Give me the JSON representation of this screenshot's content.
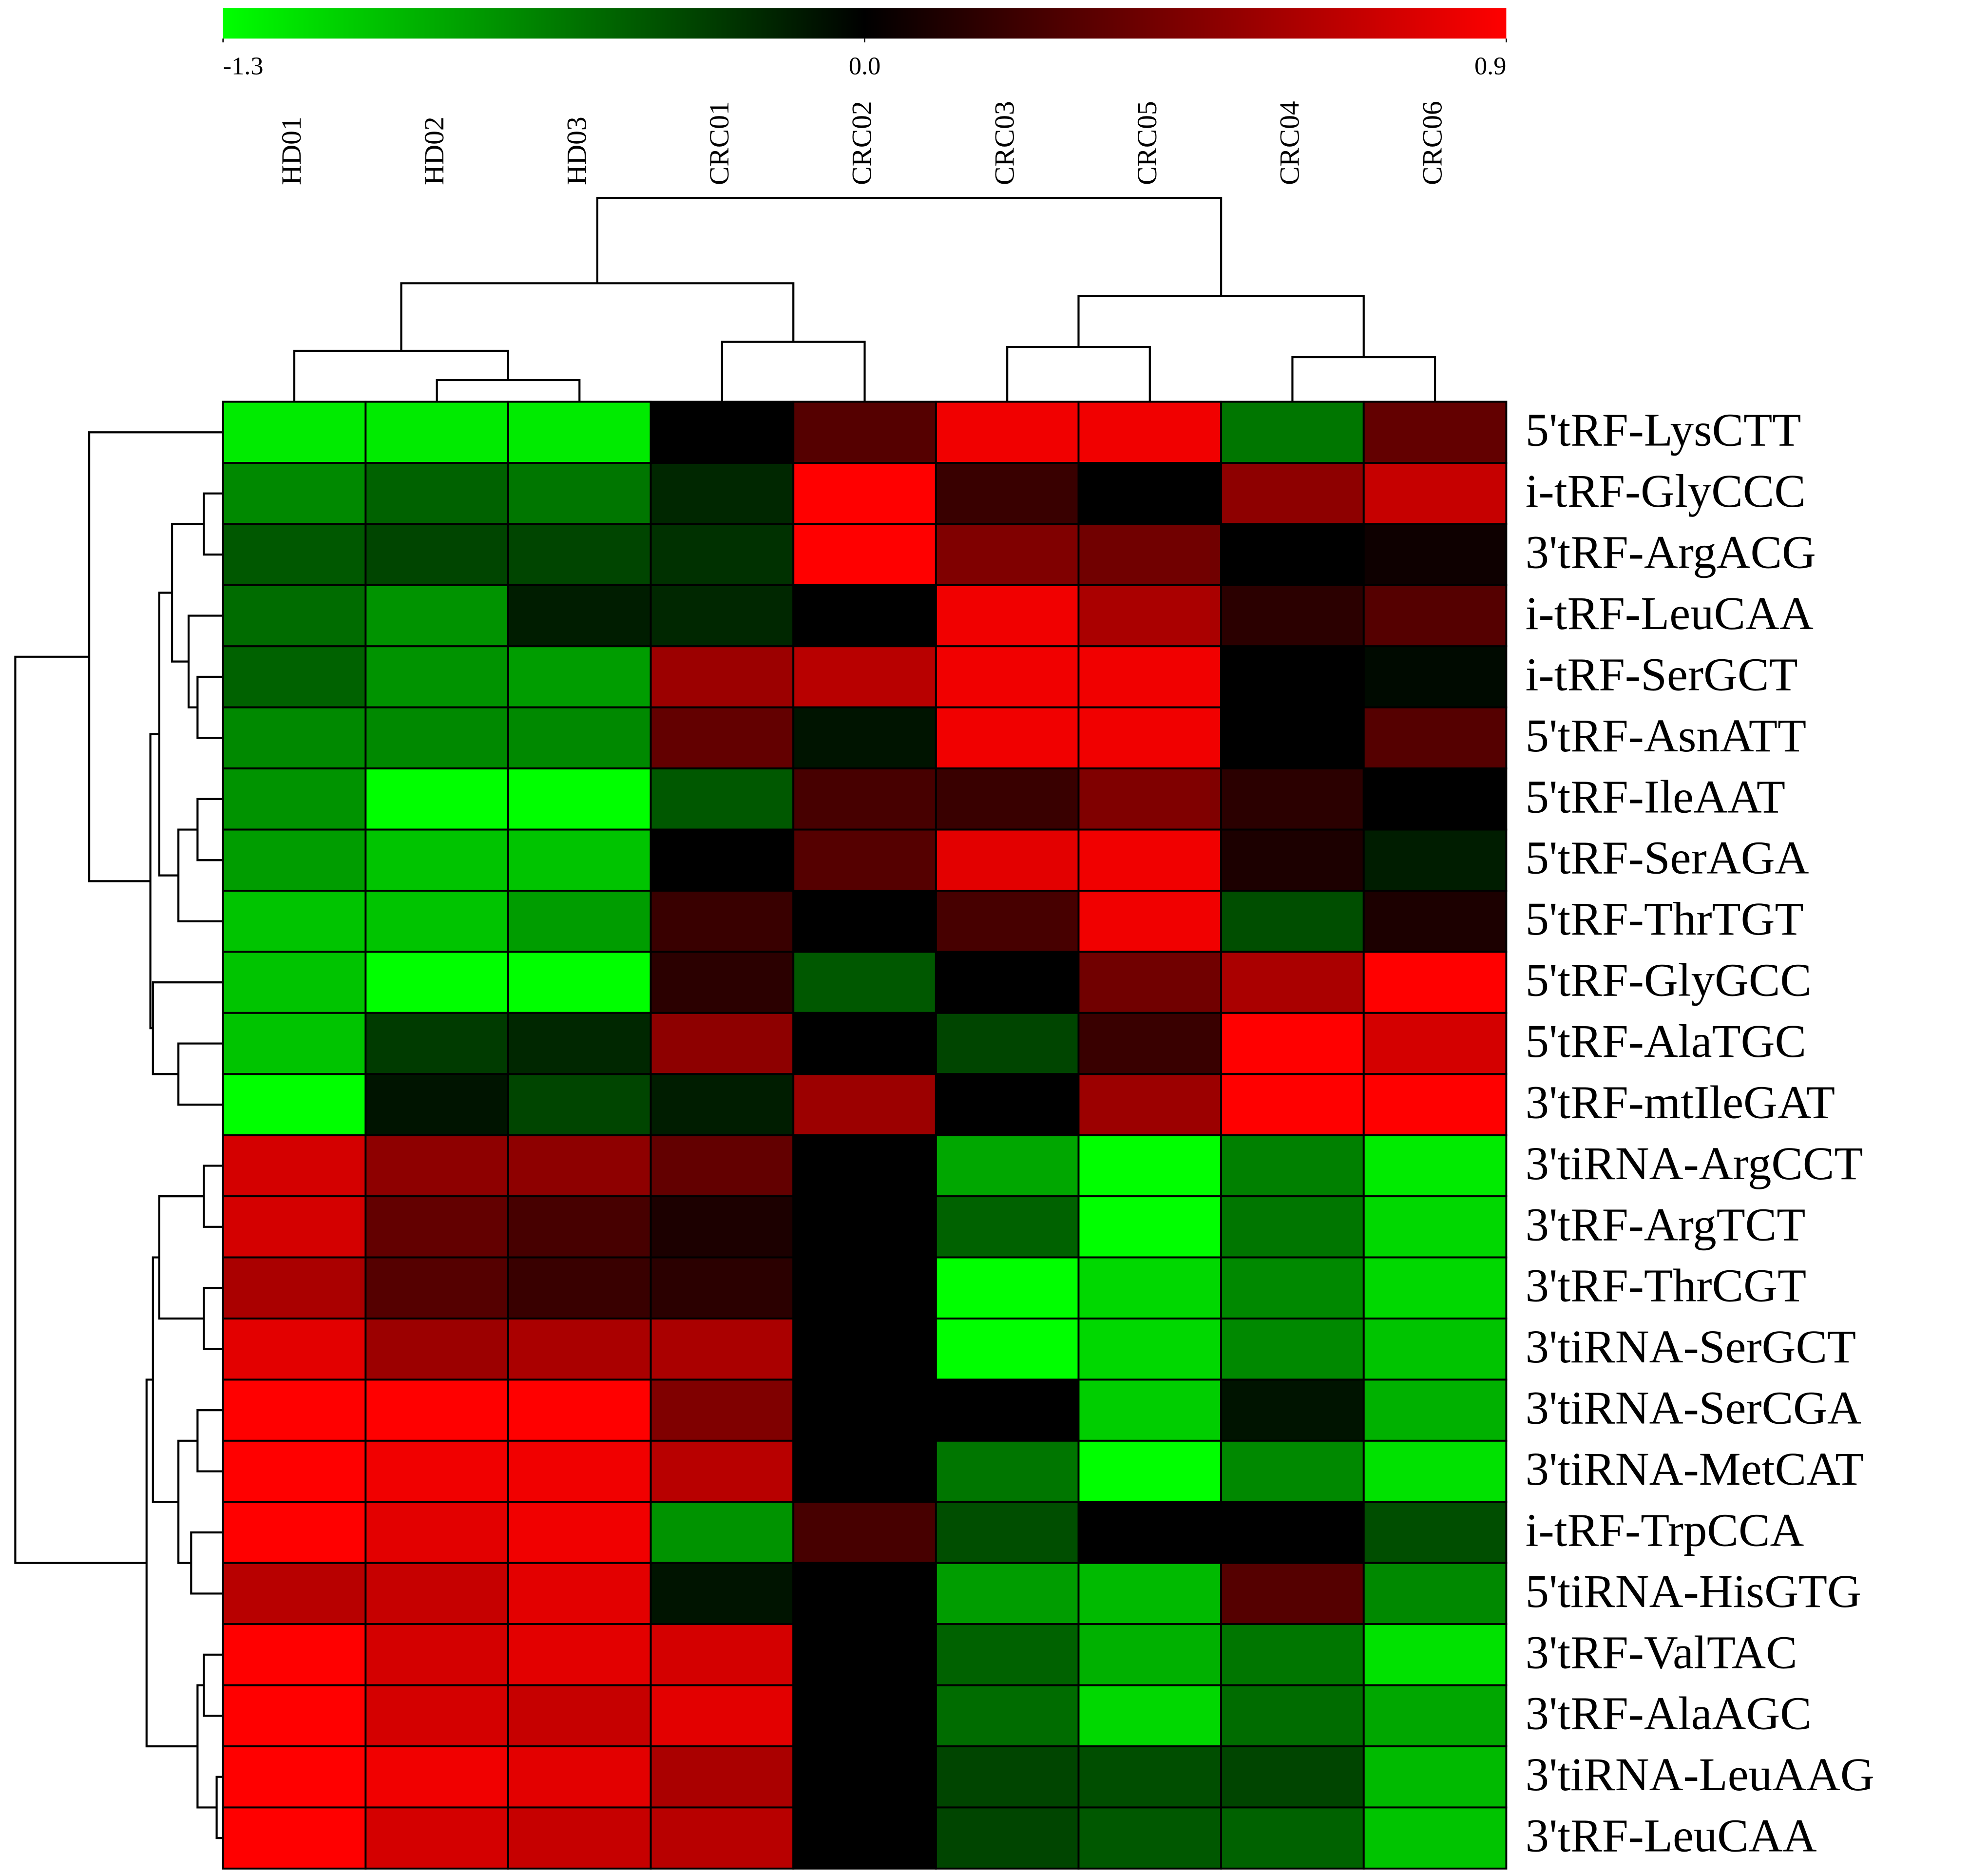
{
  "chart_data": {
    "type": "heatmap",
    "columns": [
      "HD01",
      "HD02",
      "HD03",
      "CRC01",
      "CRC02",
      "CRC03",
      "CRC05",
      "CRC04",
      "CRC06"
    ],
    "rows": [
      "5'tRF-LysCTT",
      "i-tRF-GlyCCC",
      "3'tRF-ArgACG",
      "i-tRF-LeuCAA",
      "i-tRF-SerGCT",
      "5'tRF-AsnATT",
      "5'tRF-IleAAT",
      "5'tRF-SerAGA",
      "5'tRF-ThrTGT",
      "5'tRF-GlyGCC",
      "5'tRF-AlaTGC",
      "3'tRF-mtIleGAT",
      "3'tiRNA-ArgCCT",
      "3'tRF-ArgTCT",
      "3'tRF-ThrCGT",
      "3'tiRNA-SerGCT",
      "3'tiRNA-SerCGA",
      "3'tiRNA-MetCAT",
      "i-tRF-TrpCCA",
      "5'tiRNA-HisGTG",
      "3'tRF-ValTAC",
      "3'tRF-AlaAGC",
      "3'tiRNA-LeuAAG",
      "3'tRF-LeuCAA"
    ],
    "values": [
      [
        -1.2,
        -1.2,
        -1.2,
        0,
        0.3,
        0.85,
        0.85,
        -0.6,
        0.35
      ],
      [
        -0.7,
        -0.5,
        -0.6,
        -0.2,
        0.9,
        0.2,
        0,
        0.5,
        0.7
      ],
      [
        -0.45,
        -0.35,
        -0.35,
        -0.25,
        0.9,
        0.45,
        0.4,
        0,
        0.05
      ],
      [
        -0.55,
        -0.75,
        -0.15,
        -0.2,
        0,
        0.85,
        0.6,
        0.15,
        0.3
      ],
      [
        -0.5,
        -0.75,
        -0.8,
        0.55,
        0.65,
        0.85,
        0.85,
        0,
        -0.05
      ],
      [
        -0.7,
        -0.7,
        -0.7,
        0.35,
        -0.1,
        0.85,
        0.85,
        0,
        0.3
      ],
      [
        -0.75,
        -1.3,
        -1.3,
        -0.45,
        0.25,
        0.2,
        0.45,
        0.15,
        0
      ],
      [
        -0.8,
        -1.0,
        -1.0,
        0,
        0.3,
        0.8,
        0.85,
        0.1,
        -0.15
      ],
      [
        -1.0,
        -1.0,
        -0.8,
        0.2,
        0,
        0.25,
        0.85,
        -0.4,
        0.1
      ],
      [
        -1.0,
        -1.3,
        -1.3,
        0.15,
        -0.45,
        0,
        0.4,
        0.6,
        0.9
      ],
      [
        -1.0,
        -0.3,
        -0.2,
        0.5,
        0,
        -0.35,
        0.2,
        0.9,
        0.75
      ],
      [
        -1.3,
        -0.1,
        -0.35,
        -0.15,
        0.55,
        0,
        0.55,
        0.9,
        0.9
      ],
      [
        0.75,
        0.5,
        0.5,
        0.35,
        0,
        -0.85,
        -1.3,
        -0.65,
        -1.2
      ],
      [
        0.75,
        0.35,
        0.25,
        0.1,
        0,
        -0.5,
        -1.3,
        -0.6,
        -1.1
      ],
      [
        0.6,
        0.3,
        0.2,
        0.15,
        0,
        -1.3,
        -1.1,
        -0.7,
        -1.1
      ],
      [
        0.8,
        0.55,
        0.6,
        0.6,
        0,
        -1.3,
        -1.1,
        -0.7,
        -1.0
      ],
      [
        0.9,
        0.9,
        0.9,
        0.45,
        0,
        0,
        -1.05,
        -0.1,
        -0.9
      ],
      [
        0.9,
        0.85,
        0.85,
        0.65,
        0,
        -0.6,
        -1.3,
        -0.7,
        -1.15
      ],
      [
        0.9,
        0.8,
        0.85,
        -0.75,
        0.25,
        -0.4,
        0,
        0,
        -0.4
      ],
      [
        0.65,
        0.7,
        0.8,
        -0.1,
        0,
        -0.8,
        -0.95,
        0.3,
        -0.7
      ],
      [
        0.9,
        0.75,
        0.8,
        0.75,
        0,
        -0.5,
        -0.9,
        -0.6,
        -1.15
      ],
      [
        0.9,
        0.75,
        0.7,
        0.8,
        0,
        -0.55,
        -1.1,
        -0.55,
        -0.85
      ],
      [
        0.9,
        0.85,
        0.8,
        0.6,
        0,
        -0.35,
        -0.4,
        -0.35,
        -0.95
      ],
      [
        0.9,
        0.75,
        0.7,
        0.65,
        0,
        -0.35,
        -0.45,
        -0.5,
        -1.0
      ]
    ],
    "zlim": [
      -1.3,
      0.9
    ],
    "zticks": [
      -1.3,
      {
        "value": 0,
        "label": "0.0"
      },
      0.9
    ],
    "colors": {
      "low": "#00ff00",
      "mid": "#000000",
      "high": "#ff0000"
    }
  }
}
